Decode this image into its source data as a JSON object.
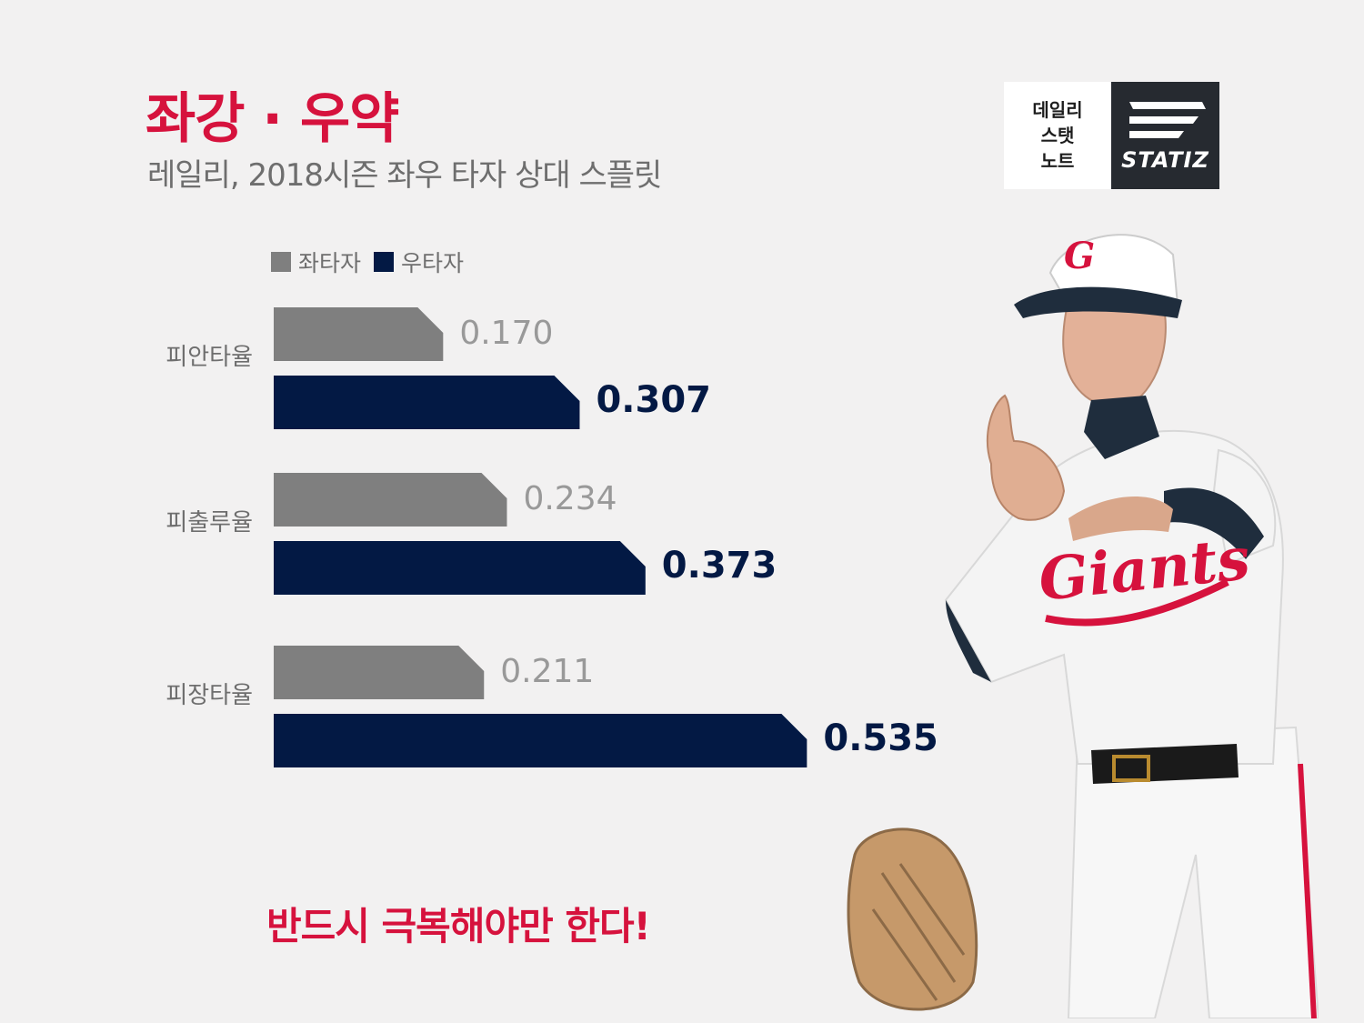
{
  "header": {
    "title": "좌강 · 우약",
    "subtitle": "레일리, 2018시즌 좌우 타자 상대 스플릿"
  },
  "logo": {
    "lines": [
      "데일리",
      "스탯",
      "노트"
    ],
    "brand": "STATIZ"
  },
  "colors": {
    "accent": "#d6123d",
    "left_series": "#7f7f7f",
    "right_series": "#031944",
    "logo_dark": "#262a30"
  },
  "chart_data": {
    "type": "bar",
    "orientation": "horizontal",
    "categories": [
      "피안타율",
      "피출루율",
      "피장타율"
    ],
    "series": [
      {
        "name": "좌타자",
        "values": [
          0.17,
          0.234,
          0.211
        ],
        "labels": [
          "0.170",
          "0.234",
          "0.211"
        ]
      },
      {
        "name": "우타자",
        "values": [
          0.307,
          0.373,
          0.535
        ],
        "labels": [
          "0.307",
          "0.373",
          "0.535"
        ]
      }
    ],
    "legend": "top-left",
    "grid": false
  },
  "footer": {
    "message": "반드시 극복해야만 한다!"
  }
}
